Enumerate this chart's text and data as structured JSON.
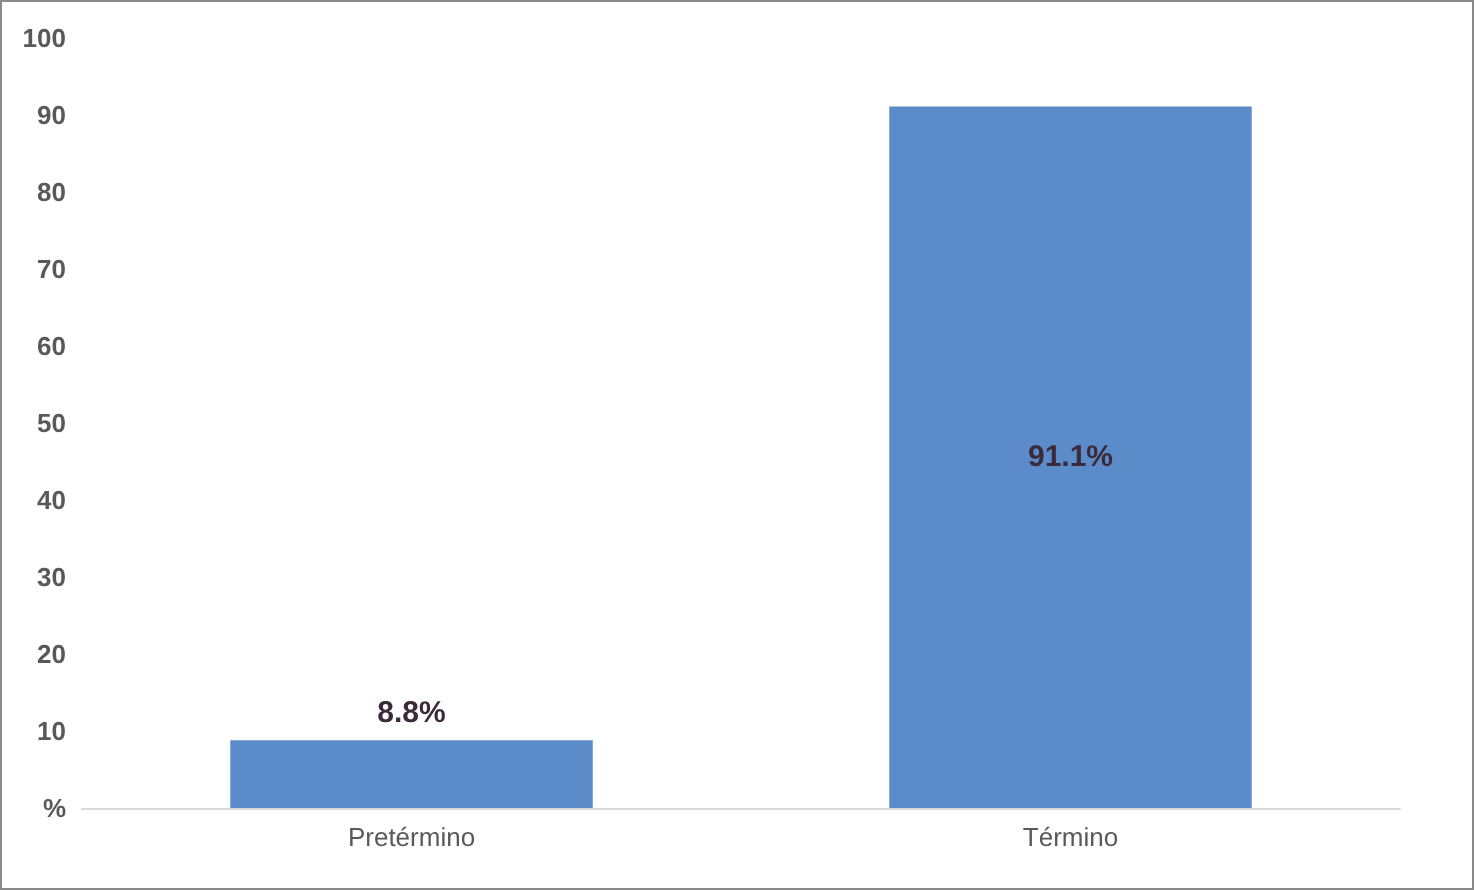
{
  "chart_data": {
    "type": "bar",
    "categories": [
      "Pretérmino",
      "Término"
    ],
    "values": [
      8.8,
      91.1
    ],
    "value_labels": [
      "8.8%",
      "91.1%"
    ],
    "color": "#5b8bc9",
    "ylim": [
      0,
      100
    ],
    "yticks": [
      {
        "value": 0,
        "label": "%"
      },
      10,
      20,
      30,
      40,
      50,
      60,
      70,
      80,
      90,
      100
    ],
    "grid": false
  }
}
